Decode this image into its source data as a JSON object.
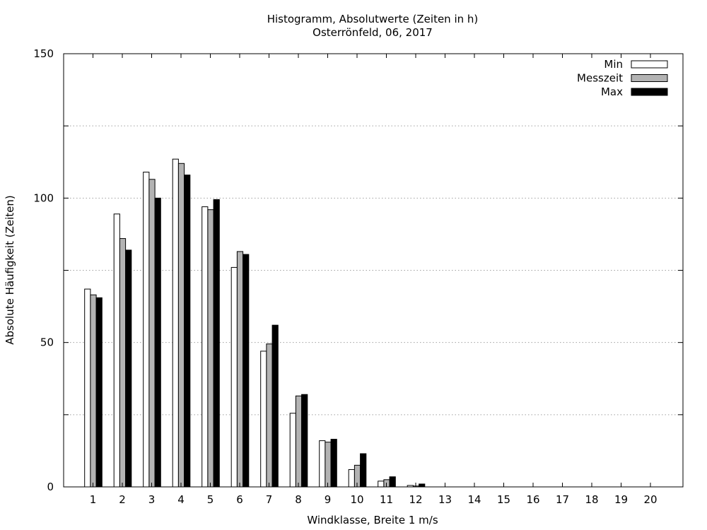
{
  "chart_data": {
    "type": "bar",
    "title": "Histogramm, Absolutwerte (Zeiten in h)",
    "subtitle": "Osterrönfeld, 06, 2017",
    "xlabel": "Windklasse, Breite 1 m/s",
    "ylabel": "Absolute Häufigkeit (Zeiten)",
    "ylim": [
      0,
      150
    ],
    "yticks": [
      0,
      50,
      100,
      150
    ],
    "grid": true,
    "legend_position": "top-right",
    "categories": [
      "1",
      "2",
      "3",
      "4",
      "5",
      "6",
      "7",
      "8",
      "9",
      "10",
      "11",
      "12",
      "13",
      "14",
      "15",
      "16",
      "17",
      "18",
      "19",
      "20"
    ],
    "series": [
      {
        "name": "Min",
        "color": "#ffffff",
        "values": [
          68.5,
          94.5,
          109,
          113.5,
          97,
          76,
          47,
          25.5,
          16,
          6,
          2,
          0.5,
          0,
          0,
          0,
          0,
          0,
          0,
          0,
          0
        ]
      },
      {
        "name": "Messzeit",
        "color": "#b3b3b3",
        "values": [
          66.5,
          86,
          106.5,
          112,
          96,
          81.5,
          49.5,
          31.5,
          15.5,
          7.5,
          2.5,
          0.3,
          0,
          0,
          0,
          0,
          0,
          0,
          0,
          0
        ]
      },
      {
        "name": "Max",
        "color": "#000000",
        "values": [
          65.5,
          82,
          100,
          108,
          99.5,
          80.5,
          56,
          32,
          16.5,
          11.5,
          3.5,
          1,
          0,
          0,
          0,
          0,
          0,
          0,
          0,
          0
        ]
      }
    ]
  }
}
